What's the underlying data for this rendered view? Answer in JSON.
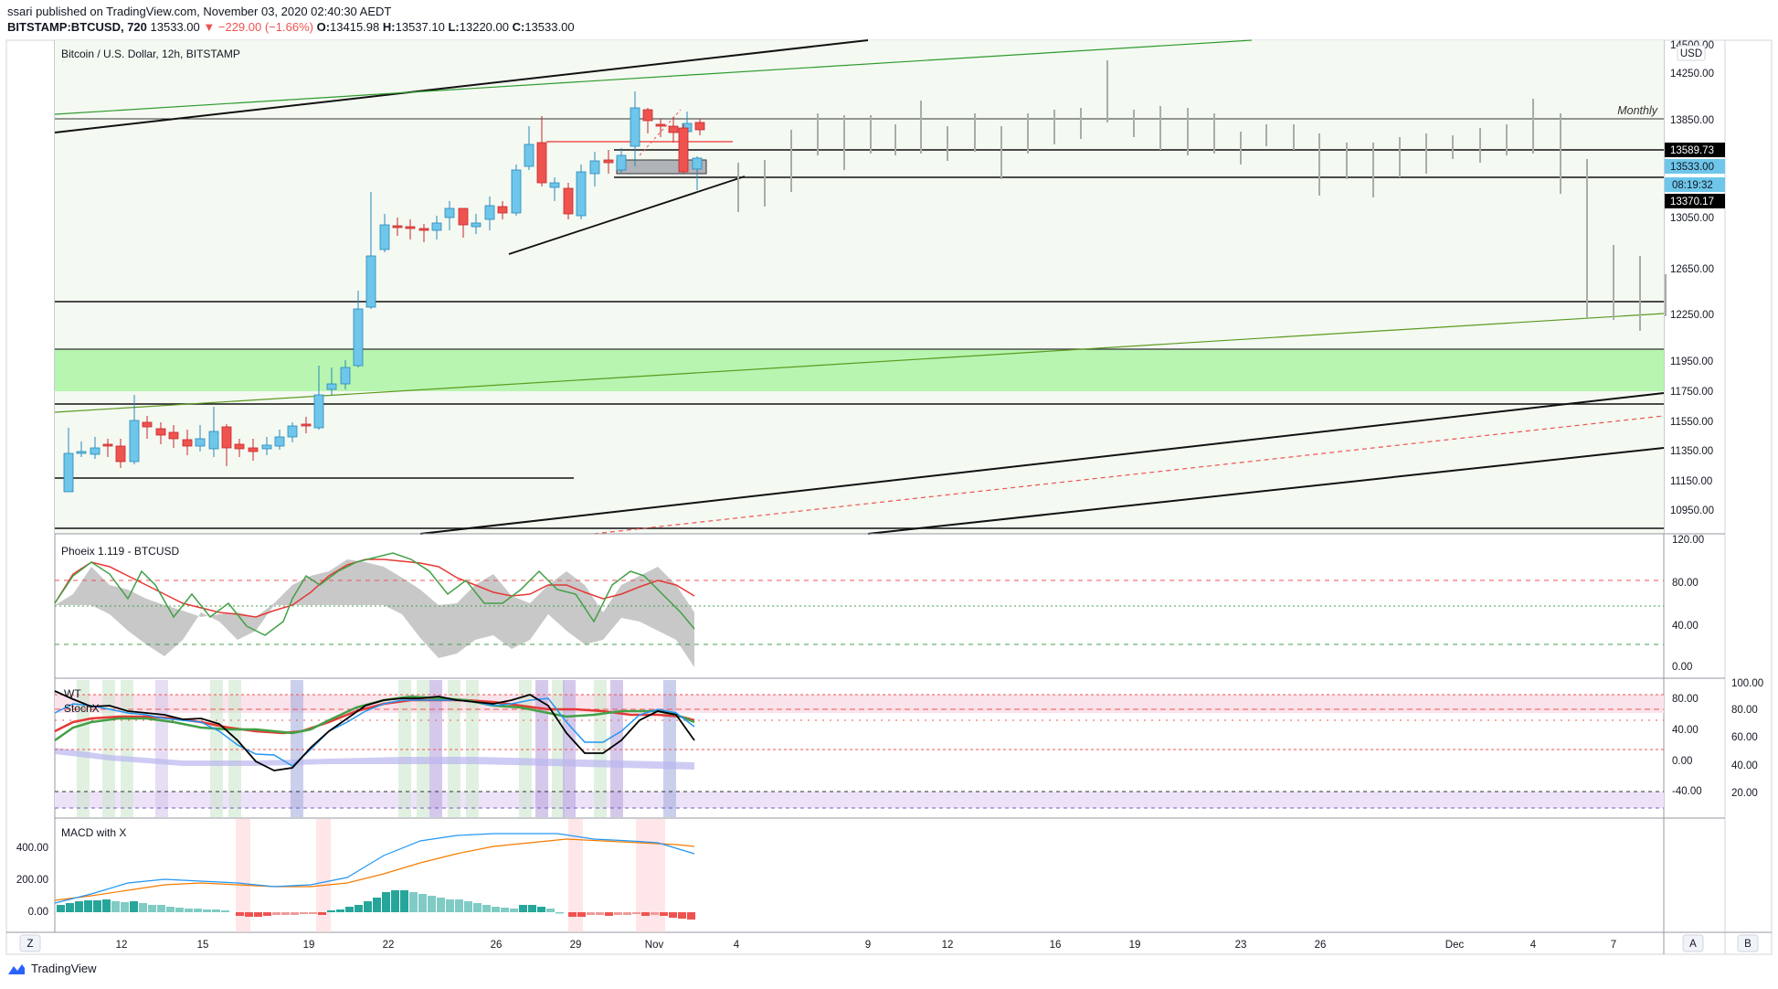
{
  "header": {
    "author": "ssari",
    "published_text": " published on TradingView.com, November 03, 2020 02:40:30 AEDT",
    "symbol": "BITSTAMP:BTCUSD, 720",
    "last": "13533.00",
    "change": "−229.00 (−1.66%)",
    "o_label": "O:",
    "o": "13415.98",
    "h_label": "H:",
    "h": "13537.10",
    "l_label": "L:",
    "l": "13220.00",
    "c_label": "C:",
    "c": "13533.00"
  },
  "pane_main": {
    "legend": "Bitcoin / U.S. Dollar, 12h, BITSTAMP",
    "currency": "USD",
    "monthly_label": "Monthly",
    "price_ticks": [
      "14500.00",
      "14250.00",
      "13850.00",
      "13050.00",
      "12650.00",
      "12250.00",
      "11950.00",
      "11750.00",
      "11550.00",
      "11350.00",
      "11150.00",
      "10950.00"
    ],
    "badges": {
      "level_high": "13589.73",
      "last_price": "13533.00",
      "countdown": "08:19:32",
      "level_low": "13370.17"
    }
  },
  "pane_phoeix": {
    "legend": "Phoeix 1.119 - BTCUSD",
    "ticks": [
      "120.00",
      "80.00",
      "40.00",
      "0.00"
    ]
  },
  "pane_wt": {
    "legend_wt": "WT",
    "legend_stoch": "StochX",
    "ticks_left": [
      "100.00",
      "80.00",
      "60.00",
      "40.00",
      "20.00"
    ],
    "ticks_right": [
      "80.00",
      "40.00",
      "0.00",
      "-40.00"
    ]
  },
  "pane_macd": {
    "legend": "MACD with X",
    "ticks": [
      "400.00",
      "200.00",
      "0.00"
    ]
  },
  "time_axis": {
    "labels": [
      "12",
      "15",
      "19",
      "22",
      "26",
      "29",
      "Nov",
      "4",
      "9",
      "12",
      "16",
      "19",
      "23",
      "26",
      "Dec",
      "4",
      "7"
    ],
    "left_button": "Z",
    "auto_button": "A",
    "log_button": "B"
  },
  "footer": {
    "brand": "TradingView"
  },
  "colors": {
    "up": "#6ec6ea",
    "down": "#ef5350",
    "zone": "#b7f5b0",
    "bg_green": "#f4f9f2"
  }
}
